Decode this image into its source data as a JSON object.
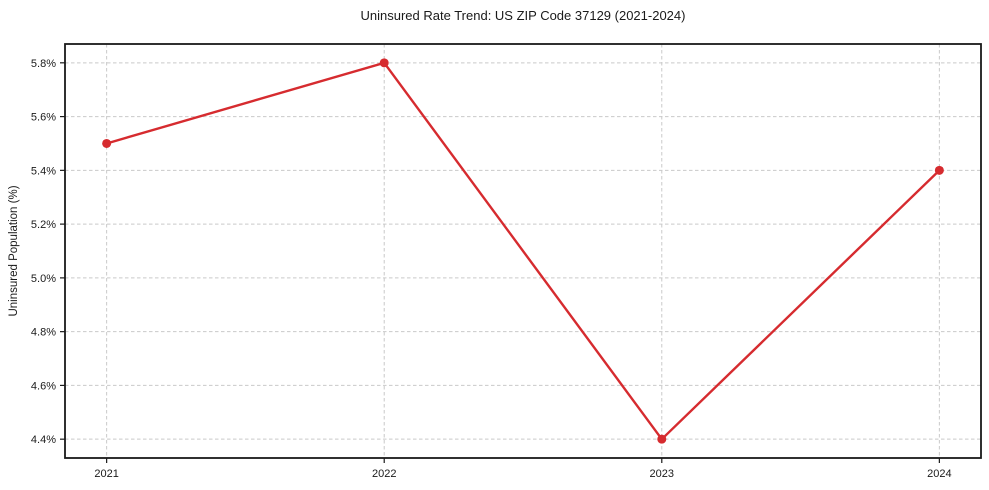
{
  "figure": {
    "title": "Uninsured Rate Trend: US ZIP Code 37129 (2021-2024)",
    "ylabel": "Uninsured Population (%)"
  },
  "chart_data": {
    "type": "line",
    "title": "Uninsured Rate Trend: US ZIP Code 37129 (2021-2024)",
    "xlabel": "",
    "ylabel": "Uninsured Population (%)",
    "x": [
      2021,
      2022,
      2023,
      2024
    ],
    "x_tick_labels": [
      "2021",
      "2022",
      "2023",
      "2024"
    ],
    "values": [
      5.5,
      5.8,
      4.4,
      5.4
    ],
    "y_ticks": [
      4.4,
      4.6,
      4.8,
      5.0,
      5.2,
      5.4,
      5.6,
      5.8
    ],
    "y_tick_suffix": "%",
    "xlim": [
      2020.85,
      2024.15
    ],
    "ylim": [
      4.33,
      5.87
    ],
    "grid": true,
    "grid_style": "dashed",
    "legend_position": "none",
    "line_color": "#d62b2f",
    "marker": "circle",
    "grid_color": "#c9c9c9",
    "axis_color": "#1a1a1a",
    "background_color": "#ffffff"
  }
}
